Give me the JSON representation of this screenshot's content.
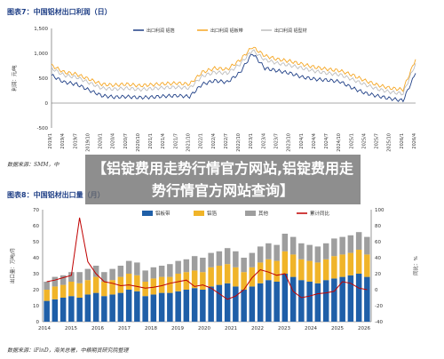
{
  "chart_data": [
    {
      "type": "line",
      "title": "图表7：中国铝材出口利润（日）",
      "ylabel": "利润：元/吨",
      "ylim": [
        -500,
        1500
      ],
      "yticks": [
        "1,500",
        "1,000",
        "500",
        "0",
        "-500"
      ],
      "ytick_values": [
        1500,
        1000,
        500,
        0,
        -500
      ],
      "categories": [
        "2019/1",
        "2019/4",
        "2019/7",
        "2019/10",
        "2020/1",
        "2020/4",
        "2020/7",
        "2020/10",
        "2021/1",
        "2021/4",
        "2021/7",
        "2021/10",
        "2022/1",
        "2022/4",
        "2022/7",
        "2022/10",
        "2023/1",
        "2023/4",
        "2023/7",
        "2023/10",
        "2024/1",
        "2024/4",
        "2024/7",
        "2024/10",
        "2025/1",
        "2025/4",
        "2025/7",
        "2025/10",
        "2026/1",
        "2026/4"
      ],
      "series": [
        {
          "name": "出口利润 铝箔",
          "color": "#1f3f86",
          "values": [
            560,
            420,
            380,
            260,
            150,
            120,
            130,
            110,
            120,
            140,
            150,
            130,
            380,
            450,
            420,
            610,
            1000,
            700,
            650,
            600,
            520,
            480,
            460,
            430,
            300,
            200,
            140,
            90,
            50,
            600
          ]
        },
        {
          "name": "出口利润 铝板带",
          "color": "#f5a623",
          "values": [
            760,
            620,
            580,
            480,
            380,
            360,
            380,
            350,
            370,
            390,
            400,
            380,
            620,
            700,
            680,
            860,
            1130,
            950,
            880,
            840,
            780,
            720,
            680,
            650,
            560,
            450,
            360,
            300,
            270,
            880
          ]
        },
        {
          "name": "出口利润 铝型材",
          "color": "#bdbdbd",
          "values": [
            700,
            560,
            520,
            410,
            300,
            280,
            300,
            270,
            290,
            310,
            320,
            300,
            540,
            620,
            600,
            780,
            1060,
            870,
            800,
            760,
            700,
            640,
            600,
            570,
            470,
            370,
            280,
            220,
            190,
            800
          ]
        }
      ]
    },
    {
      "type": "bar",
      "title": "图表8：中国铝材出口量（月）",
      "ylabel": "出口量：万吨/月",
      "ylabel_right": "同比：%",
      "ylim": [
        0,
        70
      ],
      "ylim_right": [
        -40,
        100
      ],
      "yticks": [
        "70",
        "60",
        "50",
        "40",
        "30",
        "20",
        "10",
        "0"
      ],
      "ytick_values": [
        70,
        60,
        50,
        40,
        30,
        20,
        10,
        0
      ],
      "yticks_right": [
        "100",
        "80",
        "60",
        "40",
        "20",
        "0",
        "-20",
        "-40"
      ],
      "ytick_values_right": [
        100,
        80,
        60,
        40,
        20,
        0,
        -20,
        -40
      ],
      "x_labels": [
        "2014",
        "2015",
        "2016",
        "2017",
        "2018",
        "2019",
        "2020",
        "2021",
        "2022",
        "2023",
        "2024",
        "2025",
        "2026"
      ],
      "series": [
        {
          "name": "铝板带",
          "color": "#1f5fa8",
          "values": [
            13,
            14,
            15,
            16,
            15,
            17,
            18,
            16,
            17,
            18,
            20,
            19,
            16,
            17,
            18,
            18,
            19,
            20,
            21,
            20,
            22,
            23,
            24,
            22,
            20,
            22,
            24,
            26,
            25,
            30,
            28,
            26,
            25,
            24,
            26,
            27,
            28,
            29,
            30,
            28
          ]
        },
        {
          "name": "铝箔",
          "color": "#f0b429",
          "values": [
            7,
            8,
            8,
            9,
            9,
            9,
            10,
            9,
            9,
            10,
            10,
            10,
            9,
            10,
            10,
            10,
            11,
            11,
            11,
            11,
            12,
            12,
            12,
            12,
            11,
            12,
            13,
            13,
            13,
            14,
            14,
            13,
            13,
            13,
            13,
            14,
            14,
            14,
            15,
            14
          ]
        },
        {
          "name": "其他",
          "color": "#9e9e9e",
          "values": [
            5,
            6,
            6,
            6,
            7,
            7,
            7,
            6,
            7,
            7,
            8,
            8,
            7,
            7,
            7,
            8,
            8,
            8,
            9,
            9,
            9,
            9,
            10,
            10,
            9,
            9,
            10,
            10,
            10,
            11,
            11,
            10,
            10,
            10,
            10,
            11,
            11,
            11,
            11,
            11
          ]
        },
        {
          "name": "累计同比",
          "color": "#c00000",
          "axis": "right",
          "values": [
            10,
            12,
            15,
            18,
            90,
            35,
            20,
            10,
            8,
            5,
            6,
            4,
            2,
            3,
            5,
            8,
            10,
            12,
            4,
            6,
            2,
            -5,
            -12,
            -8,
            0,
            15,
            25,
            22,
            18,
            20,
            -2,
            -10,
            -8,
            -5,
            -4,
            -2,
            10,
            8,
            2,
            0
          ]
        }
      ]
    }
  ],
  "source_1": "数据来源：SMM，中",
  "source_2": "数据来源：iFinD，海关总署，中粮期货研究院整理",
  "overlay_text": "【铝锭费用走势行情官方网站,铝锭费用走势行情官方网站查询】"
}
